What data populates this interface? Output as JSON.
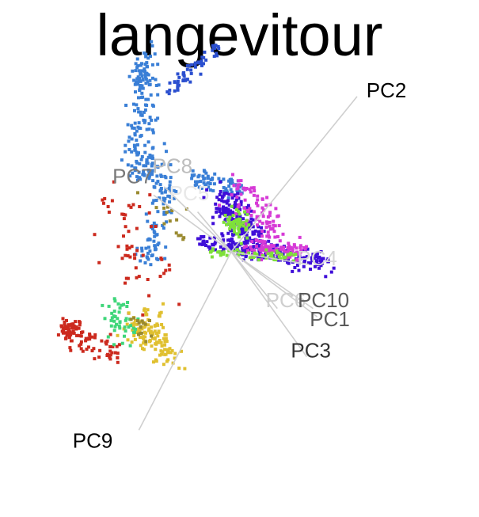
{
  "chart_data": {
    "type": "scatter",
    "title": "langevitour",
    "xlim": [
      -1,
      1
    ],
    "ylim": [
      -1,
      1
    ],
    "grid": false,
    "legend": "none",
    "axes": [
      {
        "name": "PC2",
        "x": 0.6,
        "y": 0.74,
        "label_x": 0.74,
        "label_y": 0.77,
        "color": "#000000"
      },
      {
        "name": "PC8",
        "x": -0.32,
        "y": 0.31,
        "label_x": -0.28,
        "label_y": 0.41,
        "color": "#bdbdbd"
      },
      {
        "name": "PC7",
        "x": -0.37,
        "y": 0.27,
        "label_x": -0.47,
        "label_y": 0.36,
        "color": "#7a7a7a"
      },
      {
        "name": "PC5",
        "x": -0.16,
        "y": 0.19,
        "label_x": -0.2,
        "label_y": 0.28,
        "color": "#e8e8e8"
      },
      {
        "name": "PC4",
        "x": 0.37,
        "y": -0.06,
        "label_x": 0.41,
        "label_y": -0.03,
        "color": "#d6d6d6"
      },
      {
        "name": "PC6",
        "x": 0.22,
        "y": -0.27,
        "label_x": 0.26,
        "label_y": -0.23,
        "color": "#cfcfcf"
      },
      {
        "name": "PC10",
        "x": 0.39,
        "y": -0.27,
        "label_x": 0.44,
        "label_y": -0.23,
        "color": "#5a5a5a"
      },
      {
        "name": "PC1",
        "x": 0.41,
        "y": -0.31,
        "label_x": 0.47,
        "label_y": -0.32,
        "color": "#5a5a5a"
      },
      {
        "name": "PC3",
        "x": 0.36,
        "y": -0.5,
        "label_x": 0.38,
        "label_y": -0.47,
        "color": "#333333"
      },
      {
        "name": "PC9",
        "x": -0.44,
        "y": -0.85,
        "label_x": -0.66,
        "label_y": -0.9,
        "color": "#000000"
      }
    ],
    "clusters": [
      {
        "color": "#3a7fd6",
        "n": 360,
        "segments": [
          [
            -0.4,
            0.95,
            -0.42,
            0.75,
            0.025
          ],
          [
            -0.42,
            0.75,
            -0.45,
            0.45,
            0.05
          ],
          [
            -0.45,
            0.45,
            -0.32,
            0.32,
            0.04
          ],
          [
            -0.2,
            0.35,
            0.05,
            0.3,
            0.025
          ],
          [
            -0.3,
            0.3,
            -0.4,
            -0.05,
            0.03
          ]
        ]
      },
      {
        "color": "#2b4fcf",
        "n": 60,
        "segments": [
          [
            -0.06,
            0.98,
            -0.3,
            0.76,
            0.015
          ]
        ]
      },
      {
        "color": "#3f0ed8",
        "n": 380,
        "segments": [
          [
            -0.15,
            0.05,
            0.45,
            -0.05,
            0.025
          ],
          [
            -0.05,
            0.25,
            0.1,
            0.05,
            0.04
          ]
        ]
      },
      {
        "color": "#d63ad6",
        "n": 170,
        "segments": [
          [
            0.05,
            0.02,
            0.35,
            0.0,
            0.02
          ],
          [
            0.05,
            0.3,
            0.2,
            0.1,
            0.04
          ]
        ]
      },
      {
        "color": "#7fe03a",
        "n": 120,
        "segments": [
          [
            -0.1,
            0.0,
            0.3,
            -0.02,
            0.012
          ],
          [
            0.0,
            0.15,
            0.05,
            0.1,
            0.03
          ]
        ]
      },
      {
        "color": "#cc2a1e",
        "n": 170,
        "segments": [
          [
            -0.75,
            -0.4,
            -0.55,
            -0.48,
            0.03
          ],
          [
            -0.75,
            -0.35,
            -0.8,
            -0.4,
            0.02
          ],
          [
            -0.55,
            0.2,
            -0.4,
            -0.2,
            0.08
          ]
        ]
      },
      {
        "color": "#e0c030",
        "n": 130,
        "segments": [
          [
            -0.4,
            -0.28,
            -0.3,
            -0.55,
            0.04
          ],
          [
            -0.5,
            -0.35,
            -0.3,
            -0.45,
            0.03
          ]
        ]
      },
      {
        "color": "#3fd67a",
        "n": 45,
        "segments": [
          [
            -0.55,
            -0.25,
            -0.5,
            -0.4,
            0.03
          ]
        ]
      },
      {
        "color": "#9a8a30",
        "n": 30,
        "segments": [
          [
            -0.3,
            0.2,
            -0.2,
            0.1,
            0.05
          ],
          [
            -0.45,
            -0.4,
            -0.4,
            -0.3,
            0.03
          ]
        ]
      }
    ]
  }
}
